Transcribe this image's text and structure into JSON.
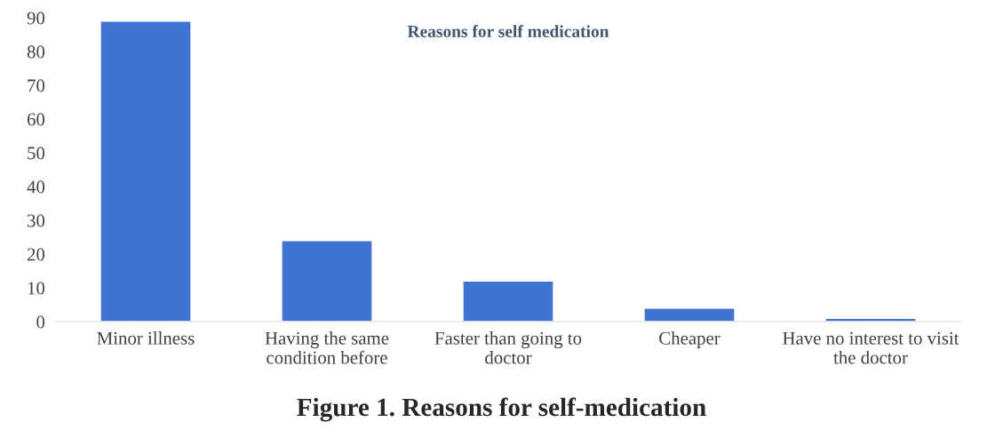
{
  "chart_data": {
    "type": "bar",
    "title": "Reasons for self medication",
    "categories": [
      "Minor illness",
      "Having the same\ncondition before",
      "Faster than going to\ndoctor",
      "Cheaper",
      "Have no interest to visit\nthe doctor"
    ],
    "values": [
      89,
      24,
      12,
      4,
      1
    ],
    "color": "#4173d2",
    "ylim": [
      0,
      90
    ],
    "yticks": [
      0,
      10,
      20,
      30,
      40,
      50,
      60,
      70,
      80,
      90
    ],
    "grid": false,
    "annotations": [
      "Figure 1. Reasons for self-medication"
    ]
  }
}
